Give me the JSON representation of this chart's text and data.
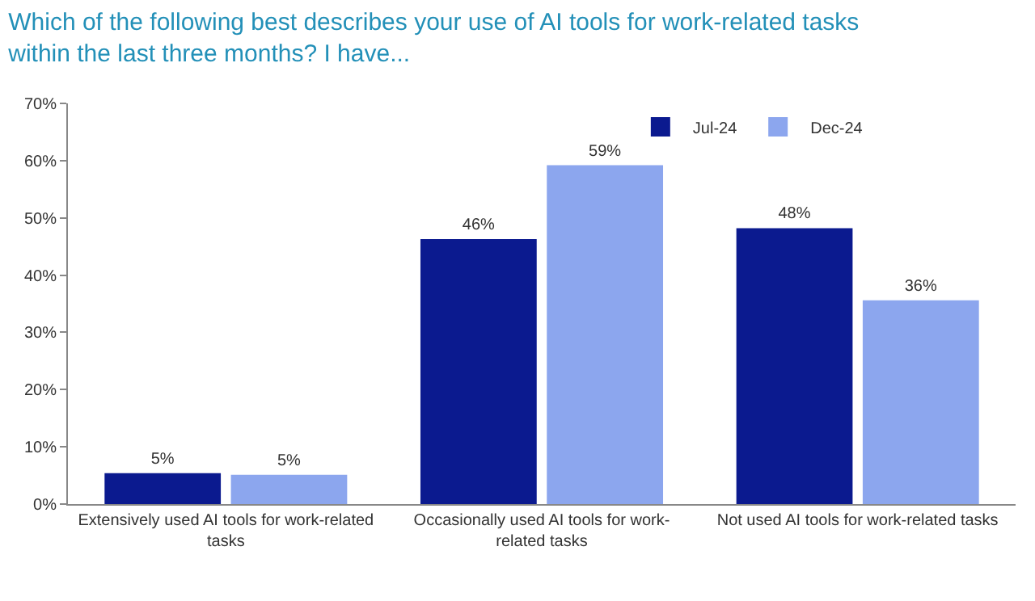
{
  "chart_data": {
    "type": "bar",
    "title": "Which of the following best describes your use of AI tools for work-related tasks within the last three months? I have...",
    "categories": [
      "Extensively used AI tools for work-related tasks",
      "Occasionally used AI tools for work-related tasks",
      "Not used AI tools for work-related tasks"
    ],
    "series": [
      {
        "name": "Jul-24",
        "color": "#0b1a8f",
        "values": [
          5.4,
          46.3,
          48.2
        ],
        "value_labels": [
          "5%",
          "46%",
          "48%"
        ]
      },
      {
        "name": "Dec-24",
        "color": "#8ca6ee",
        "values": [
          5.1,
          59.2,
          35.6
        ],
        "value_labels": [
          "5%",
          "59%",
          "36%"
        ]
      }
    ],
    "ylim": [
      0,
      70
    ],
    "yticks": [
      {
        "value": 0,
        "label": "0%"
      },
      {
        "value": 10,
        "label": "10%"
      },
      {
        "value": 20,
        "label": "20%"
      },
      {
        "value": 30,
        "label": "30%"
      },
      {
        "value": 40,
        "label": "40%"
      },
      {
        "value": 50,
        "label": "50%"
      },
      {
        "value": 60,
        "label": "60%"
      },
      {
        "value": 70,
        "label": "70%"
      }
    ],
    "grid": false,
    "legend": "top"
  }
}
